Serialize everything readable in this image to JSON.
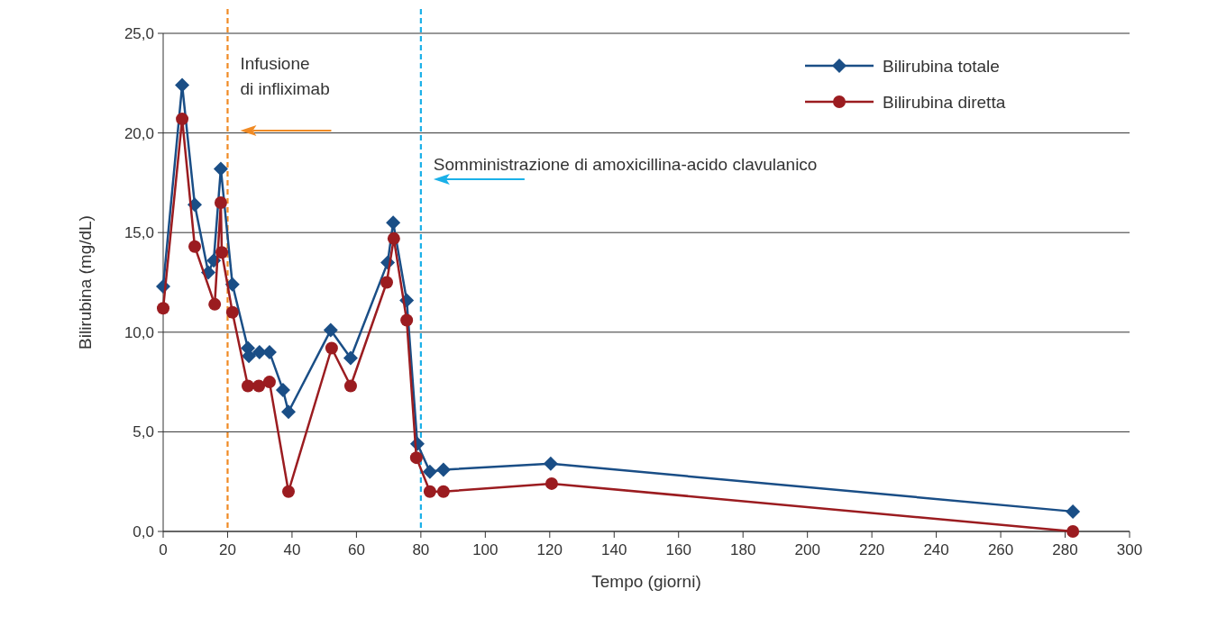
{
  "chart_data": {
    "type": "line",
    "xlabel": "Tempo (giorni)",
    "ylabel": "Bilirubina (mg/dL)",
    "xlim": [
      0,
      300
    ],
    "xticks": [
      0,
      20,
      40,
      60,
      80,
      100,
      120,
      140,
      160,
      180,
      200,
      220,
      240,
      260,
      280,
      300
    ],
    "ylim": [
      0,
      25
    ],
    "yticks": [
      {
        "value": 0,
        "label": "0,0"
      },
      {
        "value": 5,
        "label": "5,0"
      },
      {
        "value": 10,
        "label": "10,0"
      },
      {
        "value": 15,
        "label": "15,0"
      },
      {
        "value": 20,
        "label": "20,0"
      },
      {
        "value": 25,
        "label": "25,0"
      }
    ],
    "grid": "y",
    "legend": "top right",
    "series": [
      {
        "name": "Bilirubina totale",
        "color": "#1a4e86",
        "marker": "diamond",
        "x": [
          0,
          5.9,
          9.8,
          14,
          15.7,
          17.9,
          21.5,
          26.3,
          26.6,
          29.9,
          33,
          37.2,
          38.9,
          52,
          58.2,
          69.7,
          71.4,
          75.6,
          78.9,
          82.8,
          87,
          120.3,
          282.4
        ],
        "values": [
          12.3,
          22.4,
          16.4,
          13.0,
          13.6,
          18.2,
          12.4,
          9.2,
          8.8,
          9.0,
          9.0,
          7.1,
          6.0,
          10.1,
          8.7,
          13.5,
          15.5,
          11.6,
          4.4,
          3.0,
          3.1,
          3.4,
          1.0
        ]
      },
      {
        "name": "Bilirubina diretta",
        "color": "#9b1c20",
        "marker": "circle",
        "x": [
          0,
          5.9,
          9.8,
          16,
          17.9,
          18.2,
          21.5,
          26.3,
          29.7,
          33,
          38.9,
          52.3,
          58.2,
          69.4,
          71.6,
          75.6,
          78.6,
          82.8,
          87,
          120.6,
          282.4
        ],
        "values": [
          11.2,
          20.7,
          14.3,
          11.4,
          16.5,
          14.0,
          11.0,
          7.3,
          7.3,
          7.5,
          2.0,
          9.2,
          7.3,
          12.5,
          14.7,
          10.6,
          3.7,
          2.0,
          2.0,
          2.4,
          0.0
        ]
      }
    ],
    "ref_lines": [
      {
        "axis": "x",
        "value": 20,
        "label": "Infusione\ndi infliximab",
        "color": "#f08a24",
        "line_style": "dashed"
      },
      {
        "axis": "x",
        "value": 80,
        "label": "Somministrazione di amoxicillina-acido clavulanico",
        "color": "#1ab0e8",
        "line_style": "dashed"
      }
    ]
  }
}
